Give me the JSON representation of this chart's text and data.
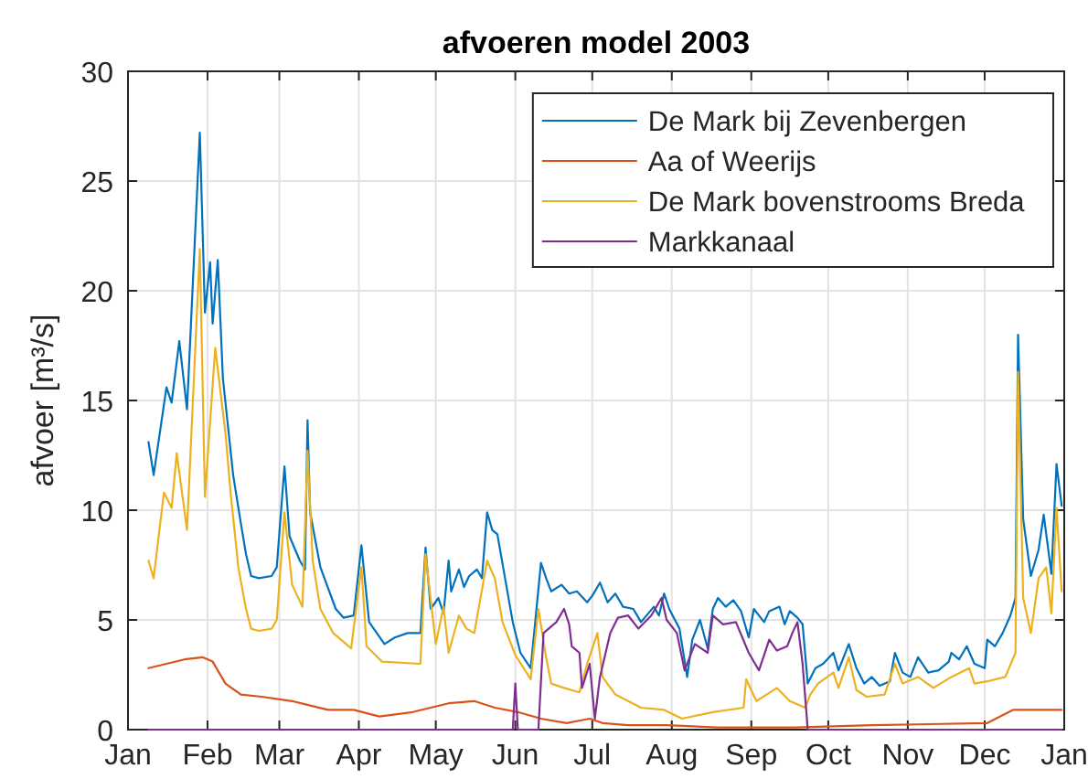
{
  "chart_data": {
    "type": "line",
    "title": "afvoeren model 2003",
    "ylabel": "afvoer [m³/s]",
    "xlim": [
      "2003-01-01",
      "2004-01-01"
    ],
    "xticks": [
      {
        "value": "2003-01-01",
        "label": "Jan"
      },
      {
        "value": "2003-02-01",
        "label": "Feb"
      },
      {
        "value": "2003-03-01",
        "label": "Mar"
      },
      {
        "value": "2003-04-01",
        "label": "Apr"
      },
      {
        "value": "2003-05-01",
        "label": "May"
      },
      {
        "value": "2003-06-01",
        "label": "Jun"
      },
      {
        "value": "2003-07-01",
        "label": "Jul"
      },
      {
        "value": "2003-08-01",
        "label": "Aug"
      },
      {
        "value": "2003-09-01",
        "label": "Sep"
      },
      {
        "value": "2003-10-01",
        "label": "Oct"
      },
      {
        "value": "2003-11-01",
        "label": "Nov"
      },
      {
        "value": "2003-12-01",
        "label": "Dec"
      },
      {
        "value": "2004-01-01",
        "label": "Jan"
      }
    ],
    "ylim": [
      0,
      30
    ],
    "yticks": [
      0,
      5,
      10,
      15,
      20,
      25,
      30
    ],
    "grid": true,
    "legend": "top right",
    "series": [
      {
        "name": "De Mark bij Zevenbergen",
        "color": "#0072bd",
        "x": [
          "2003-01-09",
          "2003-01-11",
          "2003-01-16",
          "2003-01-18",
          "2003-01-21",
          "2003-01-24",
          "2003-01-29",
          "2003-01-31",
          "2003-02-02",
          "2003-02-03",
          "2003-02-05",
          "2003-02-07",
          "2003-02-09",
          "2003-02-11",
          "2003-02-14",
          "2003-02-16",
          "2003-02-18",
          "2003-02-21",
          "2003-02-26",
          "2003-02-28",
          "2003-03-03",
          "2003-03-05",
          "2003-03-09",
          "2003-03-11",
          "2003-03-12",
          "2003-03-13",
          "2003-03-17",
          "2003-03-23",
          "2003-03-26",
          "2003-03-30",
          "2003-04-02",
          "2003-04-05",
          "2003-04-11",
          "2003-04-15",
          "2003-04-20",
          "2003-04-25",
          "2003-04-27",
          "2003-04-29",
          "2003-05-02",
          "2003-05-04",
          "2003-05-06",
          "2003-05-07",
          "2003-05-10",
          "2003-05-12",
          "2003-05-14",
          "2003-05-17",
          "2003-05-19",
          "2003-05-21",
          "2003-05-23",
          "2003-05-25",
          "2003-05-28",
          "2003-05-31",
          "2003-06-03",
          "2003-06-07",
          "2003-06-11",
          "2003-06-13",
          "2003-06-15",
          "2003-06-19",
          "2003-06-22",
          "2003-06-25",
          "2003-06-29",
          "2003-07-01",
          "2003-07-04",
          "2003-07-07",
          "2003-07-10",
          "2003-07-13",
          "2003-07-17",
          "2003-07-20",
          "2003-07-25",
          "2003-07-27",
          "2003-07-29",
          "2003-07-31",
          "2003-08-04",
          "2003-08-07",
          "2003-08-09",
          "2003-08-12",
          "2003-08-15",
          "2003-08-17",
          "2003-08-19",
          "2003-08-22",
          "2003-08-25",
          "2003-08-28",
          "2003-08-31",
          "2003-09-02",
          "2003-09-06",
          "2003-09-08",
          "2003-09-12",
          "2003-09-14",
          "2003-09-16",
          "2003-09-19",
          "2003-09-21",
          "2003-09-23",
          "2003-09-26",
          "2003-09-29",
          "2003-10-03",
          "2003-10-05",
          "2003-10-09",
          "2003-10-12",
          "2003-10-15",
          "2003-10-18",
          "2003-10-21",
          "2003-10-25",
          "2003-10-27",
          "2003-10-30",
          "2003-11-02",
          "2003-11-05",
          "2003-11-09",
          "2003-11-13",
          "2003-11-17",
          "2003-11-18",
          "2003-11-21",
          "2003-11-24",
          "2003-11-27",
          "2003-12-01",
          "2003-12-02",
          "2003-12-05",
          "2003-12-08",
          "2003-12-11",
          "2003-12-13",
          "2003-12-14",
          "2003-12-16",
          "2003-12-19",
          "2003-12-22",
          "2003-12-24",
          "2003-12-27",
          "2003-12-29",
          "2003-12-31"
        ],
        "values": [
          13.1,
          11.6,
          15.6,
          14.9,
          17.7,
          14.6,
          27.2,
          19.0,
          21.3,
          18.5,
          21.4,
          16.0,
          13.8,
          11.6,
          9.4,
          8.0,
          7.0,
          6.9,
          7.0,
          7.4,
          12.0,
          8.8,
          7.7,
          7.3,
          14.1,
          9.9,
          7.4,
          5.5,
          5.1,
          5.2,
          8.4,
          4.9,
          3.9,
          4.2,
          4.4,
          4.4,
          8.3,
          5.5,
          6.0,
          5.3,
          7.7,
          6.3,
          7.3,
          6.5,
          7.0,
          7.3,
          6.9,
          9.9,
          9.1,
          8.9,
          6.9,
          4.9,
          3.5,
          2.8,
          7.6,
          6.9,
          6.3,
          6.6,
          6.2,
          6.3,
          5.8,
          6.1,
          6.7,
          5.8,
          6.2,
          5.6,
          5.5,
          4.9,
          5.6,
          5.2,
          6.2,
          5.5,
          4.6,
          2.4,
          4.1,
          5.0,
          3.7,
          5.5,
          6.0,
          5.6,
          5.9,
          5.4,
          4.2,
          5.5,
          4.9,
          5.4,
          5.6,
          4.8,
          5.4,
          5.1,
          4.8,
          2.1,
          2.8,
          3.0,
          3.5,
          2.7,
          3.9,
          2.8,
          2.1,
          2.4,
          2.0,
          2.2,
          3.5,
          2.6,
          2.4,
          3.3,
          2.6,
          2.7,
          3.1,
          3.5,
          3.2,
          3.8,
          3.0,
          2.8,
          4.1,
          3.8,
          4.4,
          5.2,
          6.0,
          18.0,
          9.6,
          7.0,
          8.2,
          9.8,
          7.1,
          12.1,
          10.2
        ]
      },
      {
        "name": "Aa of Weerijs",
        "color": "#d95319",
        "x": [
          "2003-01-09",
          "2003-01-16",
          "2003-01-23",
          "2003-01-30",
          "2003-02-03",
          "2003-02-08",
          "2003-02-14",
          "2003-02-22",
          "2003-03-06",
          "2003-03-13",
          "2003-03-20",
          "2003-03-30",
          "2003-04-09",
          "2003-04-22",
          "2003-05-06",
          "2003-05-16",
          "2003-05-24",
          "2003-06-02",
          "2003-06-11",
          "2003-06-21",
          "2003-06-30",
          "2003-07-05",
          "2003-07-15",
          "2003-07-30",
          "2003-08-19",
          "2003-09-18",
          "2003-10-18",
          "2003-12-02",
          "2003-12-12",
          "2003-12-31"
        ],
        "values": [
          2.8,
          3.0,
          3.2,
          3.3,
          3.1,
          2.1,
          1.6,
          1.5,
          1.3,
          1.1,
          0.9,
          0.9,
          0.6,
          0.8,
          1.2,
          1.3,
          1.0,
          0.8,
          0.5,
          0.3,
          0.5,
          0.3,
          0.2,
          0.2,
          0.1,
          0.1,
          0.2,
          0.3,
          0.9,
          0.9
        ]
      },
      {
        "name": "De Mark bovenstrooms Breda",
        "color": "#edb120",
        "x": [
          "2003-01-09",
          "2003-01-11",
          "2003-01-15",
          "2003-01-18",
          "2003-01-20",
          "2003-01-24",
          "2003-01-29",
          "2003-01-31",
          "2003-02-04",
          "2003-02-08",
          "2003-02-10",
          "2003-02-13",
          "2003-02-16",
          "2003-02-18",
          "2003-02-21",
          "2003-02-26",
          "2003-02-28",
          "2003-03-03",
          "2003-03-06",
          "2003-03-10",
          "2003-03-12",
          "2003-03-14",
          "2003-03-17",
          "2003-03-22",
          "2003-03-29",
          "2003-04-02",
          "2003-04-04",
          "2003-04-10",
          "2003-04-25",
          "2003-04-27",
          "2003-05-01",
          "2003-05-04",
          "2003-05-06",
          "2003-05-10",
          "2003-05-13",
          "2003-05-16",
          "2003-05-21",
          "2003-05-24",
          "2003-05-27",
          "2003-06-01",
          "2003-06-07",
          "2003-06-10",
          "2003-06-13",
          "2003-06-15",
          "2003-06-20",
          "2003-06-26",
          "2003-06-29",
          "2003-07-03",
          "2003-07-05",
          "2003-07-10",
          "2003-07-20",
          "2003-07-29",
          "2003-08-05",
          "2003-08-17",
          "2003-08-29",
          "2003-08-30",
          "2003-09-03",
          "2003-09-11",
          "2003-09-16",
          "2003-09-22",
          "2003-09-24",
          "2003-09-27",
          "2003-10-03",
          "2003-10-05",
          "2003-10-09",
          "2003-10-12",
          "2003-10-16",
          "2003-10-23",
          "2003-10-27",
          "2003-10-30",
          "2003-11-05",
          "2003-11-11",
          "2003-11-18",
          "2003-11-25",
          "2003-11-27",
          "2003-12-02",
          "2003-12-09",
          "2003-12-13",
          "2003-12-14",
          "2003-12-16",
          "2003-12-19",
          "2003-12-22",
          "2003-12-25",
          "2003-12-27",
          "2003-12-29",
          "2003-12-31"
        ],
        "values": [
          7.7,
          6.9,
          10.8,
          10.1,
          12.6,
          9.1,
          21.9,
          10.6,
          17.4,
          13.5,
          10.8,
          7.4,
          5.5,
          4.6,
          4.5,
          4.6,
          5.0,
          9.9,
          6.6,
          5.6,
          12.7,
          7.7,
          5.5,
          4.4,
          3.7,
          7.4,
          3.8,
          3.1,
          3.0,
          8.0,
          3.9,
          5.6,
          3.5,
          5.2,
          4.6,
          4.4,
          7.7,
          6.9,
          4.9,
          3.4,
          2.3,
          5.5,
          3.3,
          2.1,
          1.9,
          1.7,
          3.0,
          4.4,
          2.4,
          1.6,
          1.0,
          0.9,
          0.5,
          0.8,
          1.0,
          2.3,
          1.3,
          1.9,
          1.3,
          1.0,
          1.6,
          2.1,
          2.6,
          1.9,
          3.3,
          1.8,
          1.5,
          1.6,
          3.0,
          2.1,
          2.4,
          1.9,
          2.4,
          2.8,
          2.1,
          2.2,
          2.4,
          3.5,
          16.3,
          6.0,
          4.4,
          6.9,
          7.4,
          5.3,
          10.1,
          6.3
        ]
      },
      {
        "name": "Markkanaal",
        "color": "#7e2f8e",
        "x": [
          "2003-01-09",
          "2003-05-31",
          "2003-06-01",
          "2003-06-02",
          "2003-06-10",
          "2003-06-12",
          "2003-06-17",
          "2003-06-20",
          "2003-06-22",
          "2003-06-23",
          "2003-06-26",
          "2003-06-27",
          "2003-06-30",
          "2003-07-02",
          "2003-07-04",
          "2003-07-08",
          "2003-07-11",
          "2003-07-15",
          "2003-07-19",
          "2003-07-24",
          "2003-07-28",
          "2003-07-30",
          "2003-08-03",
          "2003-08-06",
          "2003-08-10",
          "2003-08-15",
          "2003-08-17",
          "2003-08-21",
          "2003-08-26",
          "2003-08-31",
          "2003-09-04",
          "2003-09-08",
          "2003-09-11",
          "2003-09-15",
          "2003-09-17",
          "2003-09-19",
          "2003-09-21",
          "2003-09-23",
          "2003-12-31"
        ],
        "values": [
          0,
          0,
          2.1,
          0,
          0,
          4.4,
          4.9,
          5.5,
          4.8,
          3.8,
          3.5,
          1.9,
          3.0,
          0.5,
          2.4,
          4.4,
          5.1,
          5.2,
          4.6,
          5.2,
          6.0,
          5.0,
          4.4,
          2.7,
          3.9,
          3.5,
          5.2,
          4.8,
          4.9,
          3.5,
          2.7,
          4.1,
          3.6,
          3.8,
          4.4,
          4.9,
          3.0,
          0,
          0
        ]
      }
    ]
  }
}
